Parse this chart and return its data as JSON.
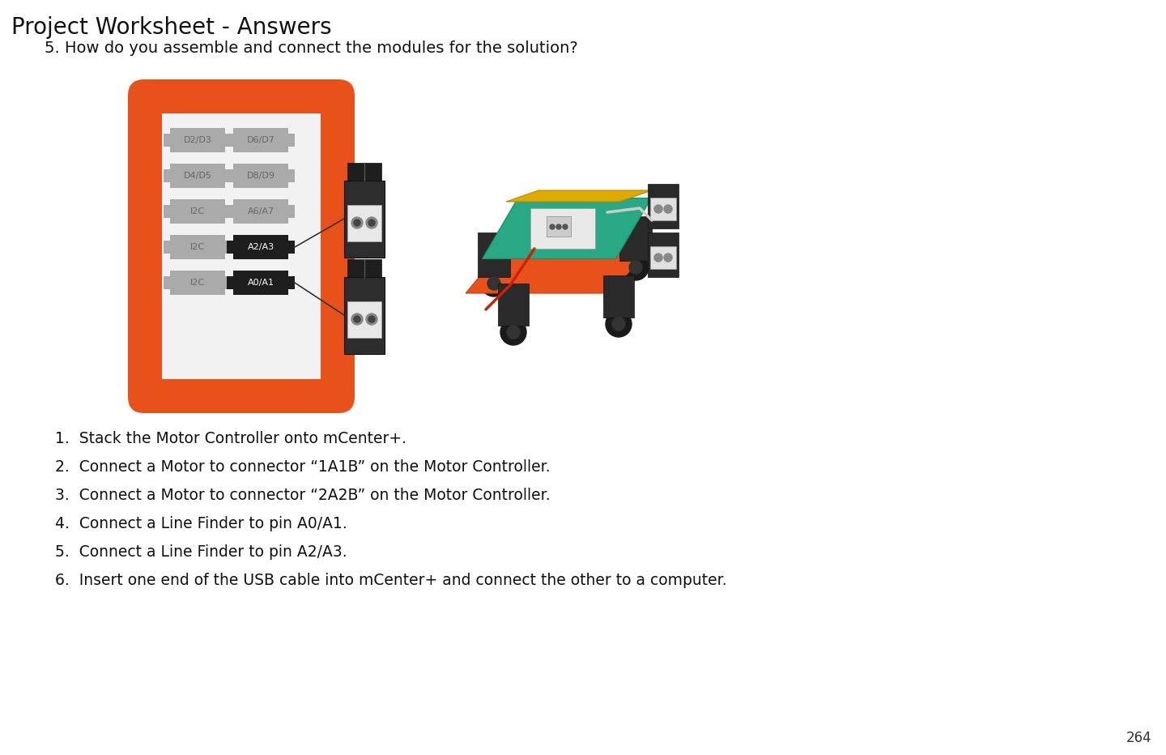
{
  "title": "Project Worksheet - Answers",
  "question": "5. How do you assemble and connect the modules for the solution?",
  "steps": [
    "1.  Stack the Motor Controller onto mCenter+.",
    "2.  Connect a Motor to connector “1A1B” on the Motor Controller.",
    "3.  Connect a Motor to connector “2A2B” on the Motor Controller.",
    "4.  Connect a Line Finder to pin A0/A1.",
    "5.  Connect a Line Finder to pin A2/A3.",
    "6.  Insert one end of the USB cable into mCenter+ and connect the other to a computer."
  ],
  "page_number": "264",
  "bg": "#ffffff",
  "orange": "#E8521A",
  "slot_gray": "#aaaaaa",
  "slot_dark": "#1e1e1e",
  "slot_text_gray": "#666666",
  "slot_text_white": "#ffffff",
  "pin_labels": [
    "D2/D3",
    "D6/D7",
    "D4/D5",
    "D8/D9",
    "I2C",
    "A6/A7",
    "I2C",
    "A2/A3",
    "I2C",
    "A0/A1"
  ],
  "highlighted_pins": [
    "A2/A3",
    "A0/A1"
  ],
  "title_fs": 20,
  "q_fs": 14,
  "step_fs": 13.5,
  "pnum_fs": 12
}
